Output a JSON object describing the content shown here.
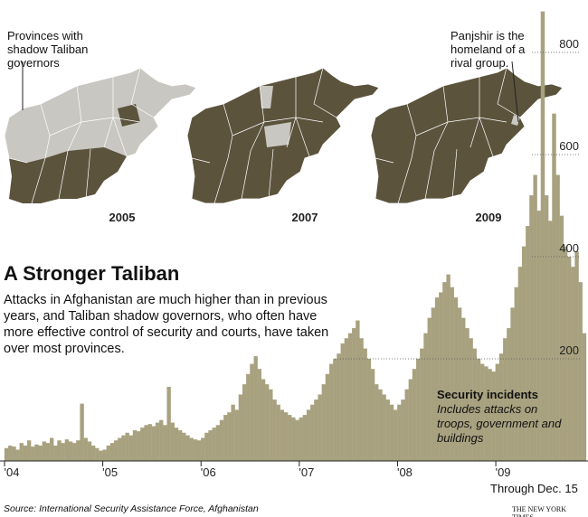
{
  "chart_data": {
    "type": "bar",
    "title": "A Stronger Taliban",
    "subtitle": "Attacks in Afghanistan are much higher than in previous years, and Taliban shadow governors, who often have more effective control of security and courts, have taken over most provinces.",
    "annotations": [
      "Provinces with shadow Taliban governors",
      "Panjshir is the homeland of a rival group."
    ],
    "maps": [
      "2005",
      "2007",
      "2009"
    ],
    "series_label": "Security incidents",
    "series_note": "Includes attacks on troops, government and buildings",
    "note": "Through Dec. 15",
    "source": "Source: International Security Assistance Force, Afghanistan",
    "credit": "THE NEW YORK TIMES",
    "color": "#a8a17f",
    "values": [
      25,
      30,
      28,
      22,
      35,
      30,
      40,
      28,
      32,
      30,
      38,
      35,
      45,
      30,
      40,
      35,
      42,
      38,
      35,
      40,
      112,
      45,
      38,
      30,
      25,
      20,
      22,
      30,
      35,
      40,
      45,
      50,
      55,
      50,
      60,
      58,
      65,
      70,
      72,
      68,
      75,
      80,
      70,
      145,
      75,
      65,
      60,
      55,
      50,
      45,
      42,
      40,
      45,
      55,
      60,
      65,
      70,
      80,
      90,
      95,
      110,
      100,
      130,
      150,
      170,
      190,
      205,
      180,
      160,
      150,
      140,
      120,
      110,
      100,
      95,
      90,
      85,
      80,
      85,
      90,
      100,
      110,
      120,
      130,
      150,
      170,
      190,
      200,
      210,
      230,
      240,
      250,
      260,
      275,
      240,
      220,
      200,
      180,
      150,
      140,
      130,
      120,
      110,
      100,
      110,
      120,
      140,
      160,
      180,
      200,
      220,
      250,
      280,
      300,
      320,
      330,
      350,
      365,
      340,
      320,
      300,
      280,
      260,
      240,
      220,
      200,
      190,
      185,
      180,
      175,
      190,
      210,
      240,
      260,
      300,
      340,
      380,
      420,
      460,
      520,
      560,
      490,
      880,
      520,
      470,
      680,
      560,
      480,
      420,
      400,
      380,
      410,
      350,
      250
    ],
    "xlim": [
      2004,
      2009.92
    ],
    "xticks": [
      {
        "value": 2004,
        "label": "'04"
      },
      {
        "value": 2005,
        "label": "'05"
      },
      {
        "value": 2006,
        "label": "'06"
      },
      {
        "value": 2007,
        "label": "'07"
      },
      {
        "value": 2008,
        "label": "'08"
      },
      {
        "value": 2009,
        "label": "'09"
      }
    ],
    "ylim": [
      0,
      900
    ],
    "yticks": [
      200,
      400,
      600,
      800
    ],
    "grid": true
  }
}
